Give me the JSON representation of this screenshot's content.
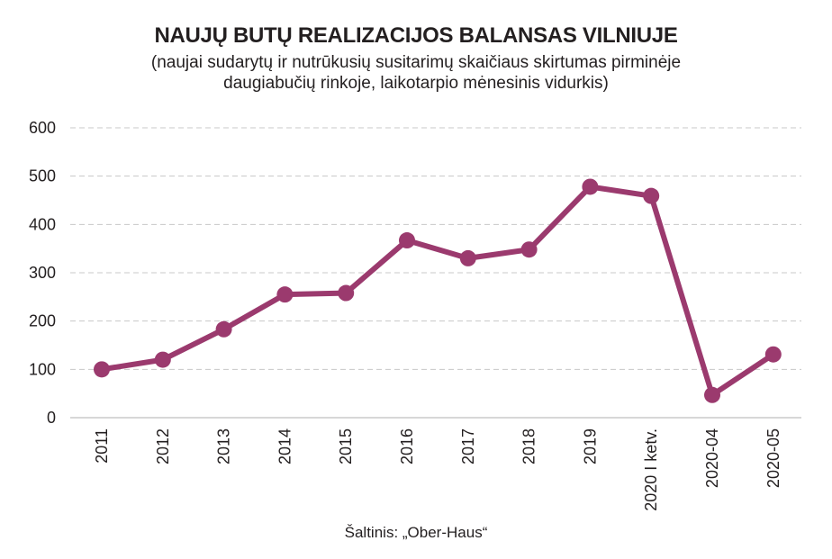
{
  "chart_data": {
    "type": "line",
    "title": "NAUJŲ BUTŲ REALIZACIJOS BALANSAS VILNIUJE",
    "subtitle_lines": [
      "(naujai sudarytų ir nutrūkusių susitarimų skaičiaus skirtumas pirminėje",
      "daugiabučių rinkoje, laikotarpio mėnesinis vidurkis)"
    ],
    "categories": [
      "2011",
      "2012",
      "2013",
      "2014",
      "2015",
      "2016",
      "2017",
      "2018",
      "2019",
      "2020 I ketv.",
      "2020-04",
      "2020-05"
    ],
    "series": [
      {
        "values": [
          100,
          120,
          183,
          255,
          258,
          367,
          330,
          348,
          478,
          459,
          47,
          131
        ]
      }
    ],
    "ylim": [
      0,
      600
    ],
    "yticks": [
      0,
      100,
      200,
      300,
      400,
      500,
      600
    ],
    "grid": true,
    "line_color": "#9b3a6e"
  },
  "source": "Šaltinis: „Ober-Haus“"
}
